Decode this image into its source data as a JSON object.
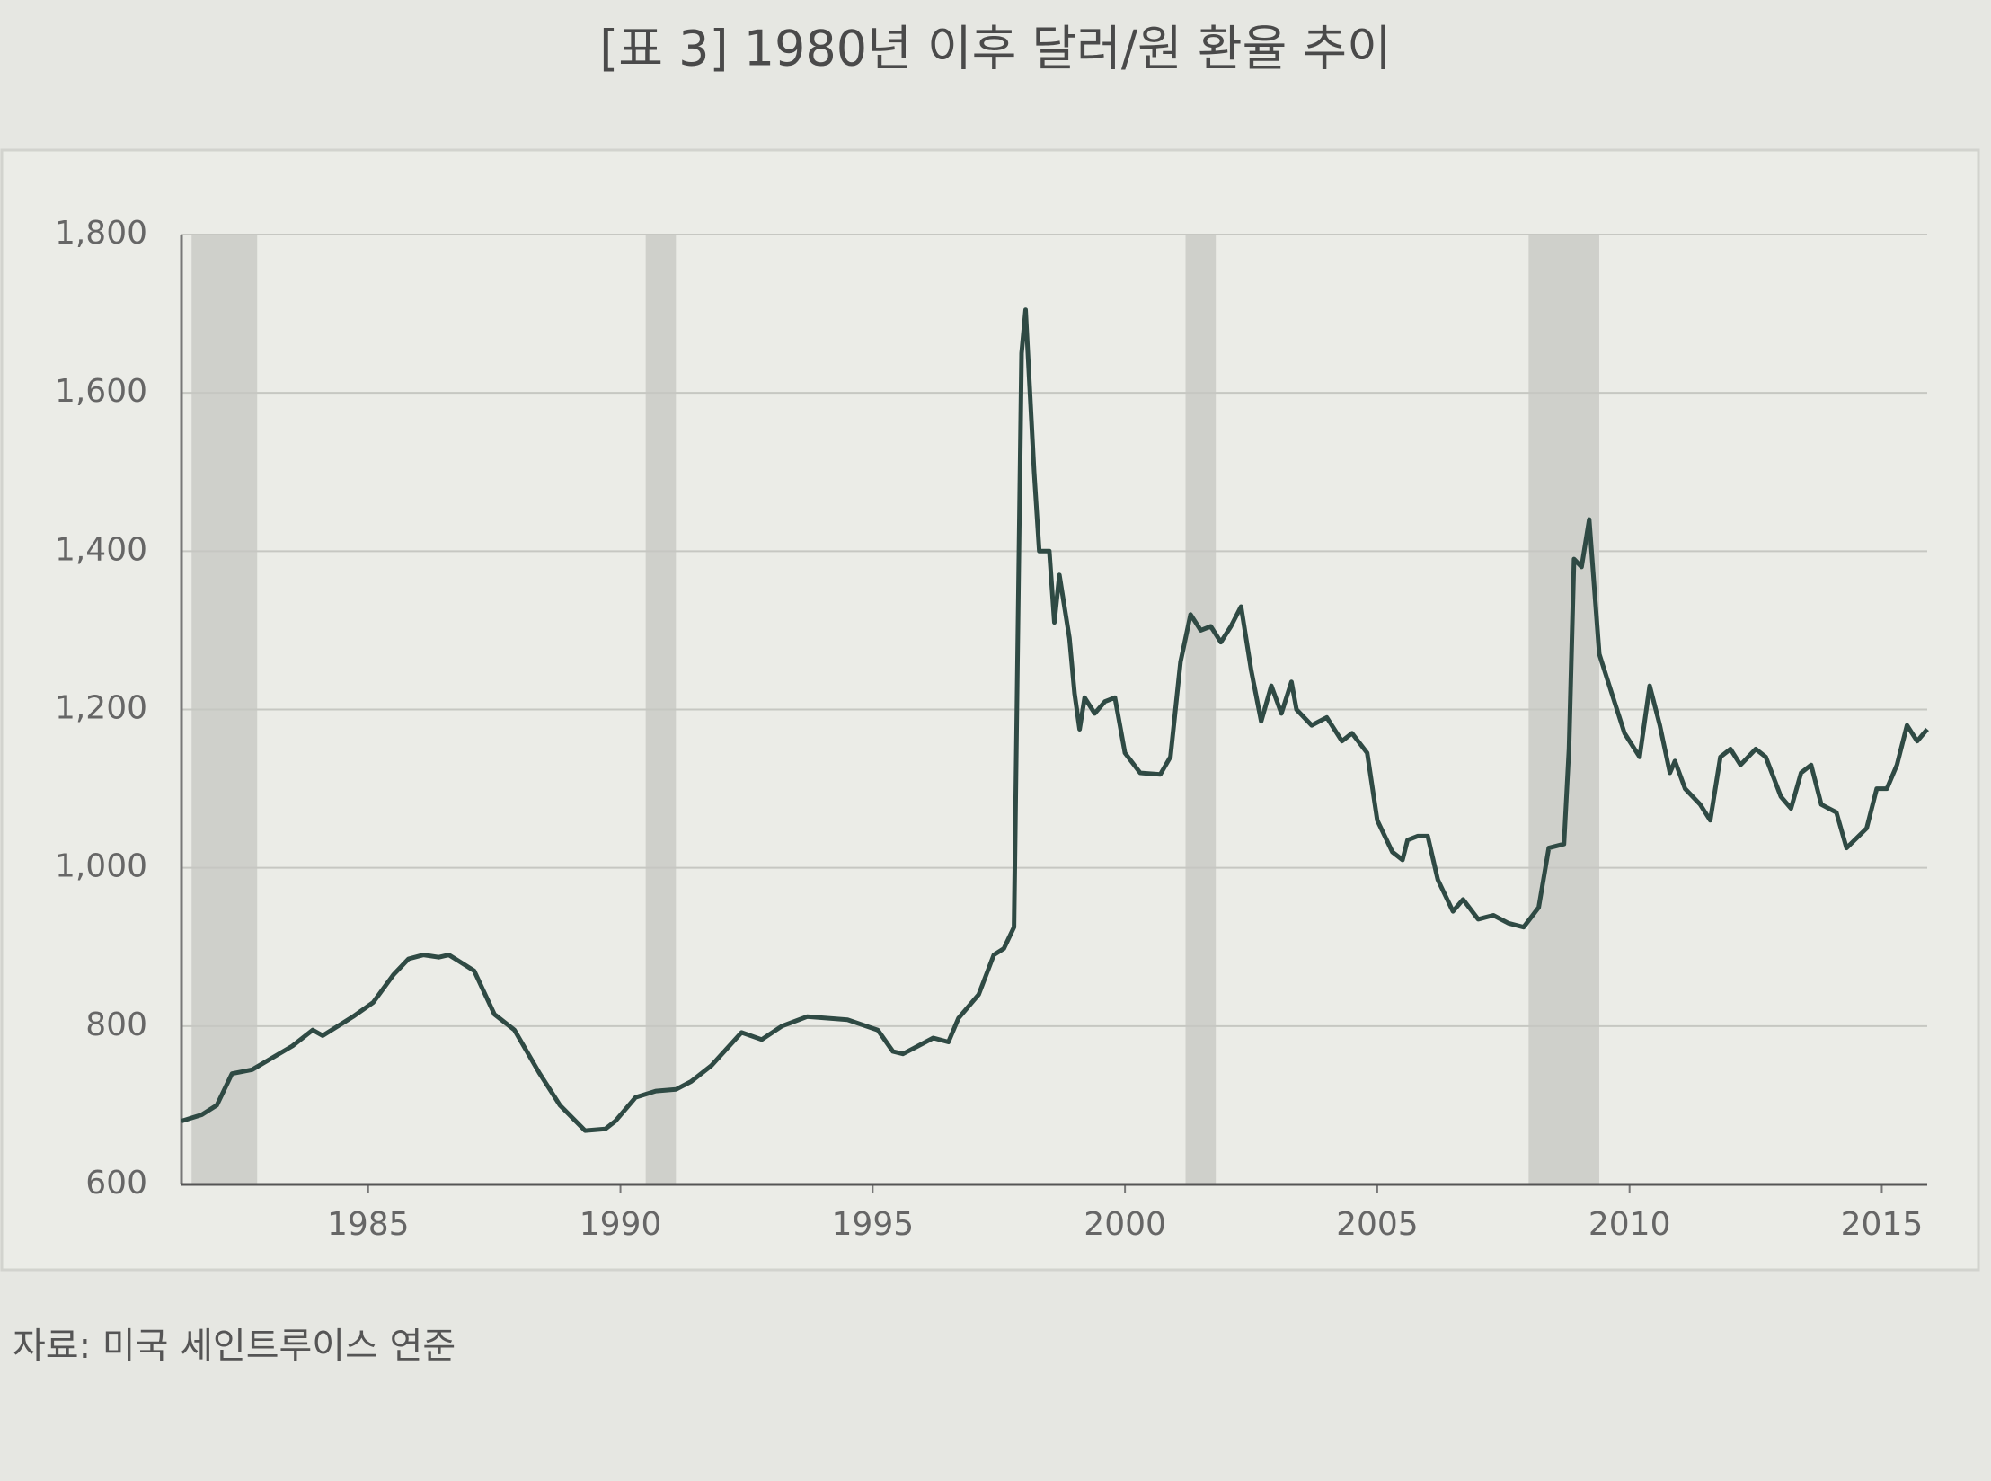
{
  "chart_data": {
    "type": "line",
    "title": "[표 3] 1980년 이후 달러/원 환율 추이",
    "source": "자료: 미국 세인트루이스 연준",
    "color": "#2f4a44",
    "shade_color": "#cfd0cb",
    "shaded_periods": [
      [
        1981.5,
        1982.8
      ],
      [
        1990.5,
        1991.1
      ],
      [
        2001.2,
        2001.8
      ],
      [
        2008.0,
        2009.4
      ]
    ],
    "xlim": [
      1981.3,
      2015.9
    ],
    "xticks": [
      1985,
      1990,
      1995,
      2000,
      2005,
      2010,
      2015
    ],
    "ylim": [
      600,
      1800
    ],
    "yticks": [
      600,
      800,
      {
        "value": 1000,
        "label": "1,000"
      },
      {
        "value": 1200,
        "label": "1,200"
      },
      {
        "value": 1400,
        "label": "1,400"
      },
      {
        "value": 1600,
        "label": "1,600"
      },
      {
        "value": 1800,
        "label": "1,800"
      }
    ],
    "grid": true,
    "x": [
      1981.3,
      1981.7,
      1982.0,
      1982.3,
      1982.7,
      1983.5,
      1983.9,
      1984.1,
      1984.7,
      1985.1,
      1985.5,
      1985.8,
      1986.1,
      1986.4,
      1986.6,
      1987.1,
      1987.5,
      1987.9,
      1988.4,
      1988.8,
      1989.3,
      1989.7,
      1989.9,
      1990.3,
      1990.7,
      1991.1,
      1991.4,
      1991.8,
      1992.4,
      1992.8,
      1993.2,
      1993.7,
      1994.5,
      1995.1,
      1995.4,
      1995.6,
      1995.9,
      1996.2,
      1996.5,
      1996.7,
      1997.1,
      1997.4,
      1997.6,
      1997.8,
      1997.95,
      1998.03,
      1998.2,
      1998.3,
      1998.5,
      1998.6,
      1998.7,
      1998.9,
      1999.0,
      1999.1,
      1999.2,
      1999.4,
      1999.6,
      1999.8,
      2000.0,
      2000.3,
      2000.7,
      2000.9,
      2001.1,
      2001.3,
      2001.5,
      2001.7,
      2001.9,
      2002.1,
      2002.3,
      2002.5,
      2002.7,
      2002.9,
      2003.1,
      2003.3,
      2003.4,
      2003.7,
      2004.0,
      2004.3,
      2004.5,
      2004.8,
      2005.0,
      2005.3,
      2005.5,
      2005.6,
      2005.8,
      2006.0,
      2006.2,
      2006.5,
      2006.7,
      2007.0,
      2007.3,
      2007.6,
      2007.9,
      2008.2,
      2008.4,
      2008.7,
      2008.8,
      2008.9,
      2009.05,
      2009.2,
      2009.4,
      2009.6,
      2009.9,
      2010.2,
      2010.4,
      2010.6,
      2010.8,
      2010.9,
      2011.1,
      2011.4,
      2011.6,
      2011.8,
      2012.0,
      2012.2,
      2012.5,
      2012.7,
      2013.0,
      2013.2,
      2013.4,
      2013.6,
      2013.8,
      2014.1,
      2014.3,
      2014.7,
      2014.9,
      2015.1,
      2015.3,
      2015.5,
      2015.7,
      2015.9
    ],
    "values": [
      680,
      688,
      700,
      740,
      745,
      775,
      795,
      788,
      812,
      830,
      865,
      885,
      890,
      887,
      890,
      870,
      815,
      795,
      740,
      700,
      668,
      670,
      680,
      710,
      718,
      720,
      730,
      750,
      792,
      783,
      800,
      812,
      808,
      795,
      768,
      765,
      775,
      785,
      780,
      810,
      840,
      890,
      898,
      925,
      1650,
      1705,
      1500,
      1400,
      1400,
      1310,
      1370,
      1290,
      1220,
      1175,
      1215,
      1195,
      1210,
      1215,
      1145,
      1120,
      1118,
      1140,
      1260,
      1320,
      1300,
      1305,
      1285,
      1305,
      1330,
      1250,
      1185,
      1230,
      1195,
      1235,
      1200,
      1180,
      1190,
      1160,
      1170,
      1145,
      1060,
      1020,
      1010,
      1035,
      1040,
      1040,
      985,
      945,
      960,
      935,
      940,
      930,
      925,
      950,
      1025,
      1030,
      1150,
      1390,
      1380,
      1440,
      1270,
      1230,
      1170,
      1140,
      1230,
      1180,
      1120,
      1135,
      1100,
      1080,
      1060,
      1140,
      1150,
      1130,
      1150,
      1140,
      1090,
      1075,
      1120,
      1130,
      1080,
      1070,
      1025,
      1050,
      1100,
      1100,
      1130,
      1180,
      1160,
      1175
    ]
  }
}
